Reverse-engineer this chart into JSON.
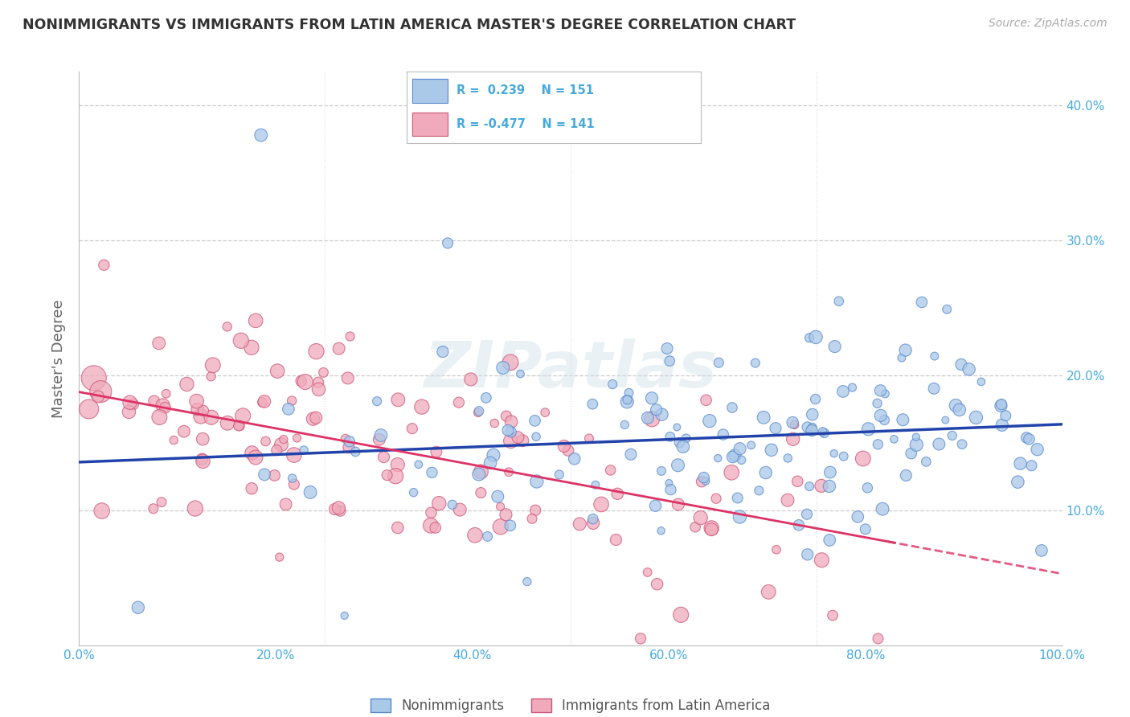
{
  "title": "NONIMMIGRANTS VS IMMIGRANTS FROM LATIN AMERICA MASTER'S DEGREE CORRELATION CHART",
  "source": "Source: ZipAtlas.com",
  "ylabel": "Master's Degree",
  "blue_R": 0.239,
  "blue_N": 151,
  "pink_R": -0.477,
  "pink_N": 141,
  "blue_color": "#aac8e8",
  "blue_edge_color": "#5588cc",
  "pink_color": "#f0aabb",
  "pink_edge_color": "#cc5577",
  "blue_line_color": "#2244aa",
  "pink_line_color": "#dd3366",
  "legend_label_blue": "Nonimmigrants",
  "legend_label_pink": "Immigrants from Latin America",
  "watermark": "ZIPatlas",
  "background_color": "#ffffff",
  "grid_color": "#cccccc",
  "title_color": "#333333",
  "axis_label_color": "#44aadd",
  "blue_seed": 42,
  "pink_seed": 123
}
